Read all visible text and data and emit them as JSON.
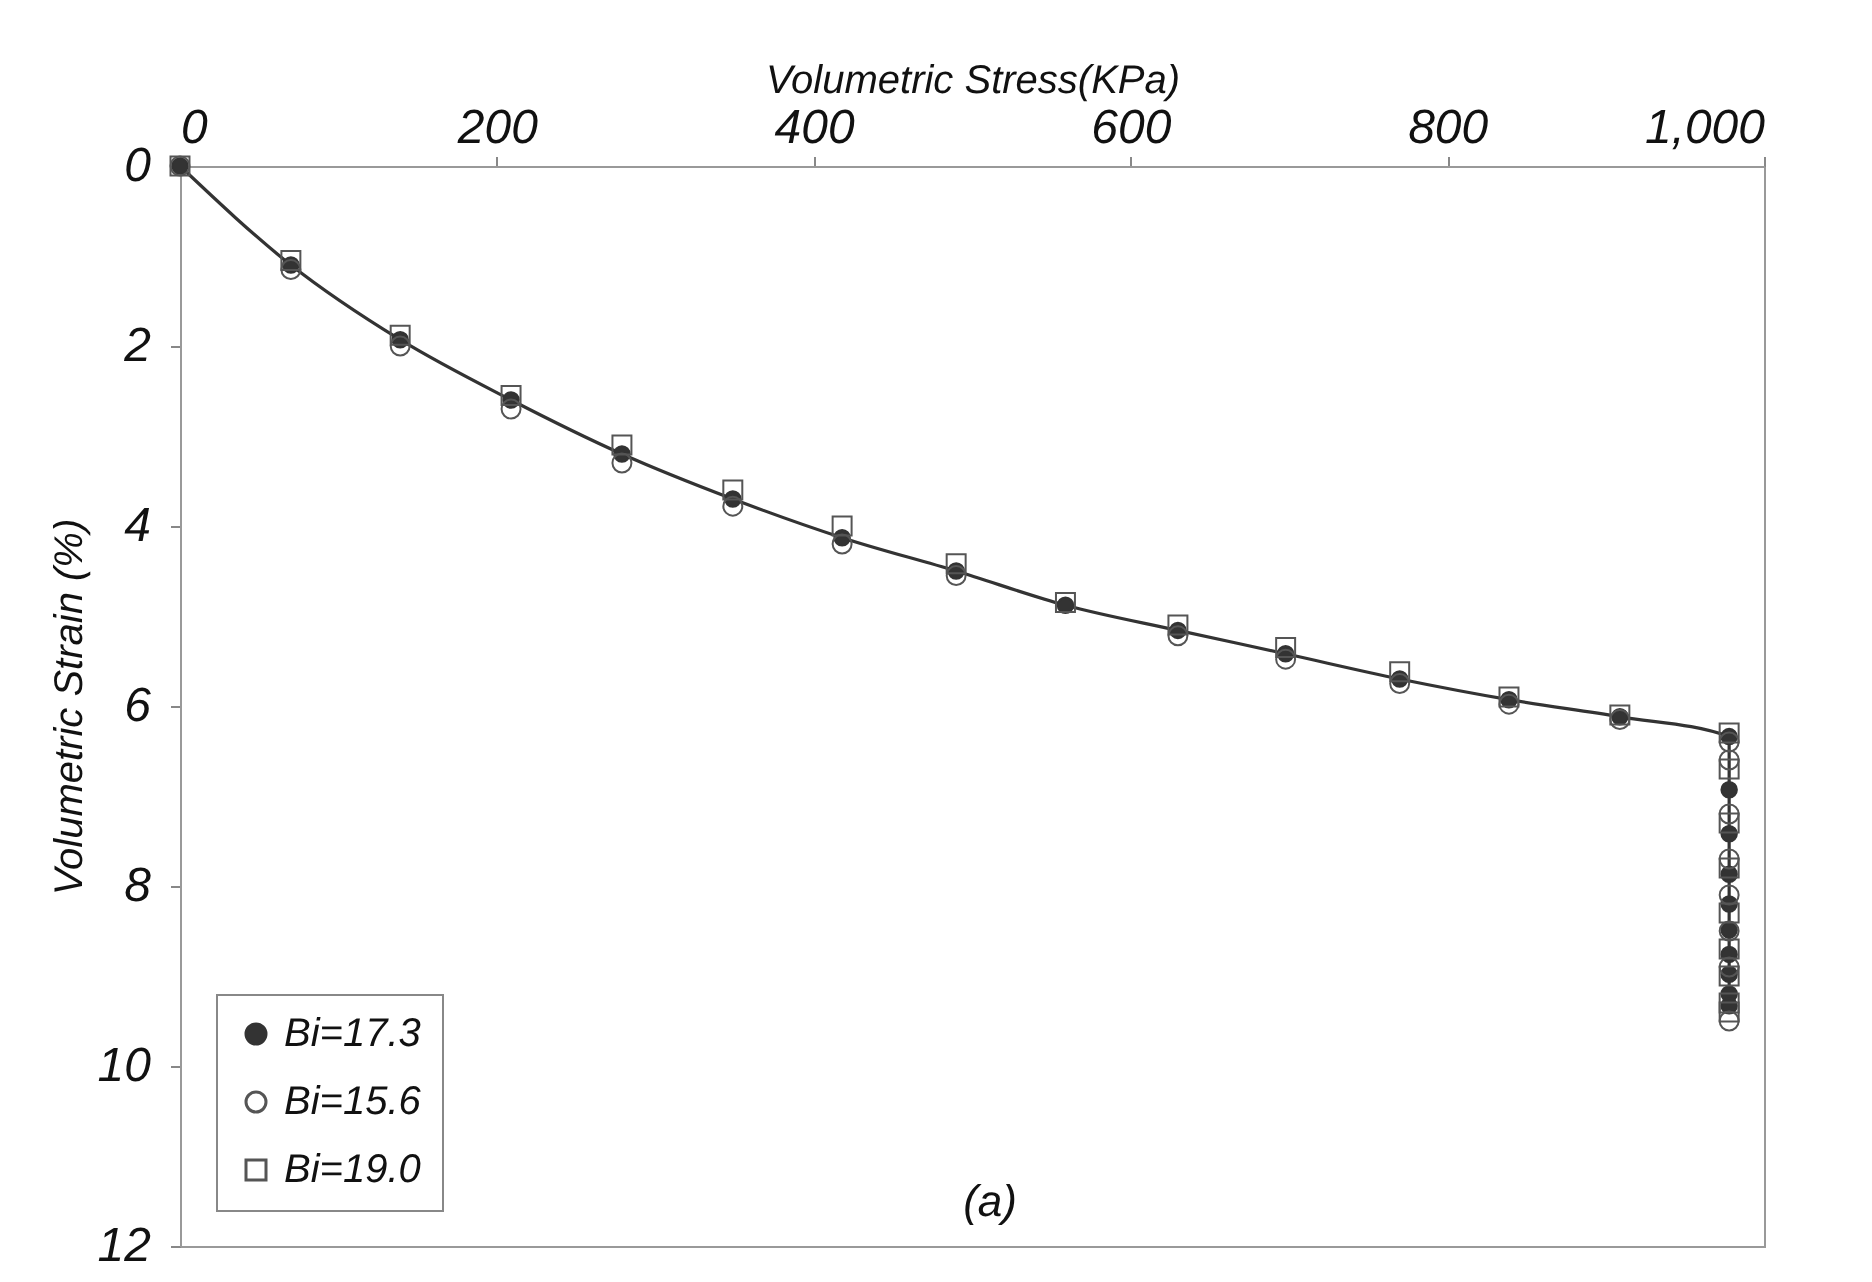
{
  "chart_data": {
    "type": "line",
    "xlabel": "Volumetric Stress(KPa)",
    "ylabel": "Volumetric Strain (%)",
    "xlim": [
      0,
      1000
    ],
    "xticks": [
      0,
      200,
      400,
      600,
      800,
      {
        "value": 1000,
        "label": "1,000"
      }
    ],
    "ylim": [
      12,
      0
    ],
    "yticks": [
      0,
      2,
      4,
      6,
      8,
      10,
      12
    ],
    "legend": "bottom left",
    "grid": false,
    "annotations": [
      "(a)"
    ],
    "series": [
      {
        "name": "Bi=17.3",
        "marker": "circle",
        "line_style": "solid",
        "color": "#333333",
        "x": [
          0,
          70,
          139,
          209,
          279,
          349,
          418,
          490,
          559,
          630,
          698,
          770,
          839,
          909,
          978,
          978,
          978,
          978,
          978,
          978,
          978,
          978,
          978,
          978
        ],
        "values": [
          0,
          1.1,
          1.93,
          2.6,
          3.2,
          3.7,
          4.13,
          4.5,
          4.88,
          5.16,
          5.42,
          5.7,
          5.93,
          6.12,
          6.34,
          6.93,
          7.42,
          7.87,
          8.2,
          8.49,
          8.76,
          8.98,
          9.2,
          9.33
        ]
      },
      {
        "name": "Bi=15.6",
        "type": "scatter",
        "marker": "circle",
        "color": "#555555",
        "x": [
          0,
          70,
          139,
          209,
          279,
          349,
          418,
          490,
          559,
          630,
          698,
          770,
          839,
          909,
          978,
          978,
          978,
          978,
          978,
          978,
          978,
          978
        ],
        "values": [
          0,
          1.15,
          2.0,
          2.7,
          3.3,
          3.78,
          4.2,
          4.55,
          null,
          5.22,
          5.48,
          5.75,
          5.98,
          6.15,
          6.4,
          6.6,
          7.2,
          7.7,
          8.1,
          8.5,
          8.9,
          9.5
        ]
      },
      {
        "name": "Bi=19.0",
        "type": "scatter",
        "marker": "square",
        "color": "#555555",
        "x": [
          0,
          70,
          139,
          209,
          279,
          349,
          418,
          490,
          559,
          630,
          698,
          770,
          839,
          909,
          978,
          978,
          978,
          978,
          978,
          978,
          978,
          978,
          978
        ],
        "values": [
          0,
          1.05,
          1.88,
          2.55,
          3.1,
          3.6,
          4.0,
          4.42,
          4.85,
          5.1,
          5.35,
          5.62,
          5.9,
          6.1,
          6.3,
          6.7,
          7.3,
          7.8,
          8.3,
          8.7,
          9.0,
          9.3,
          9.4
        ]
      }
    ]
  }
}
